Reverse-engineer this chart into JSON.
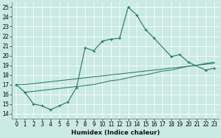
{
  "xlabel": "Humidex (Indice chaleur)",
  "bg_color": "#caeae2",
  "grid_color": "#b8d8d0",
  "line_color": "#2a7a6a",
  "xlim": [
    -0.5,
    23.5
  ],
  "ylim": [
    13.5,
    25.5
  ],
  "xticks": [
    0,
    1,
    2,
    3,
    4,
    5,
    6,
    7,
    8,
    9,
    10,
    11,
    12,
    13,
    14,
    15,
    16,
    17,
    18,
    19,
    20,
    21,
    22,
    23
  ],
  "yticks": [
    14,
    15,
    16,
    17,
    18,
    19,
    20,
    21,
    22,
    23,
    24,
    25
  ],
  "curve_x": [
    0,
    1,
    2,
    3,
    4,
    5,
    6,
    7,
    8,
    9,
    10,
    11,
    12,
    13,
    14,
    15,
    16,
    18,
    19,
    20,
    22,
    23
  ],
  "curve_y": [
    17.0,
    16.2,
    15.0,
    14.8,
    14.4,
    14.8,
    15.2,
    16.7,
    20.8,
    20.5,
    21.5,
    21.7,
    21.8,
    25.0,
    24.2,
    22.7,
    21.8,
    19.9,
    20.1,
    19.3,
    18.5,
    18.7
  ],
  "diag1_x": [
    0,
    1,
    2,
    3,
    4,
    5,
    6,
    7,
    8,
    9,
    10,
    11,
    12,
    13,
    14,
    15,
    16,
    17,
    18,
    19,
    20,
    21,
    22,
    23
  ],
  "diag1_y": [
    17.0,
    17.0,
    17.1,
    17.2,
    17.3,
    17.4,
    17.5,
    17.6,
    17.7,
    17.8,
    17.9,
    18.0,
    18.1,
    18.2,
    18.3,
    18.4,
    18.5,
    18.6,
    18.7,
    18.8,
    18.9,
    19.0,
    19.1,
    19.2
  ],
  "diag2_x": [
    1,
    2,
    3,
    4,
    5,
    6,
    7,
    8,
    9,
    10,
    11,
    12,
    13,
    14,
    15,
    16,
    17,
    18,
    19,
    20,
    21,
    22,
    23
  ],
  "diag2_y": [
    16.2,
    16.3,
    16.4,
    16.5,
    16.6,
    16.7,
    16.8,
    16.9,
    17.0,
    17.2,
    17.4,
    17.5,
    17.7,
    17.9,
    18.0,
    18.2,
    18.4,
    18.5,
    18.7,
    18.9,
    19.0,
    19.2,
    19.3
  ]
}
